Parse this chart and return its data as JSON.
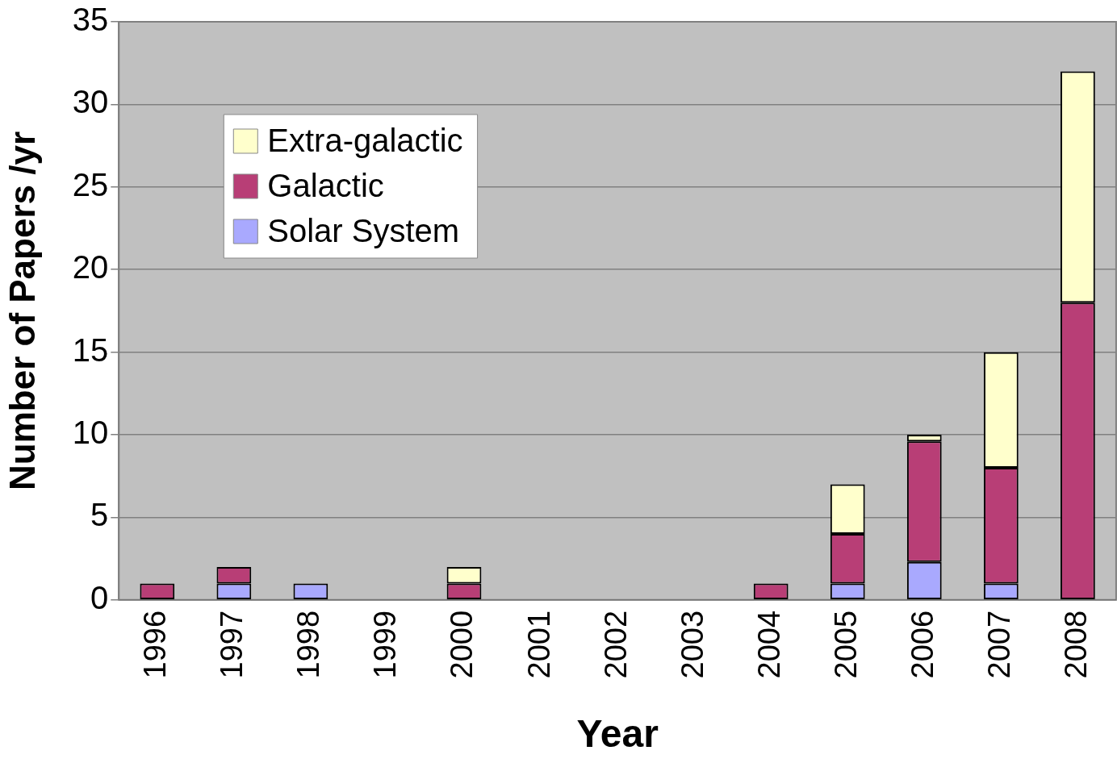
{
  "chart_data": {
    "type": "bar",
    "stacked": true,
    "xlabel": "Year",
    "ylabel": "Number of Papers /yr",
    "categories": [
      "1996",
      "1997",
      "1998",
      "1999",
      "2000",
      "2001",
      "2002",
      "2003",
      "2004",
      "2005",
      "2006",
      "2007",
      "2008"
    ],
    "series": [
      {
        "name": "Solar System",
        "color": "#a9a9fe",
        "values": [
          0,
          1,
          1,
          0,
          0,
          0,
          0,
          0,
          0,
          1,
          2.3,
          1,
          0
        ]
      },
      {
        "name": "Galactic",
        "color": "#b83e76",
        "values": [
          1,
          1,
          0,
          0,
          1,
          0,
          0,
          0,
          1,
          3,
          7.3,
          7,
          18
        ]
      },
      {
        "name": "Extra-galactic",
        "color": "#ffffcc",
        "values": [
          0,
          0,
          0,
          0,
          1,
          0,
          0,
          0,
          0,
          3,
          0.4,
          7,
          14
        ]
      }
    ],
    "ylim": [
      0,
      35
    ],
    "yticks": [
      0,
      5,
      10,
      15,
      20,
      25,
      30,
      35
    ],
    "grid": "y",
    "legend": "top left"
  }
}
